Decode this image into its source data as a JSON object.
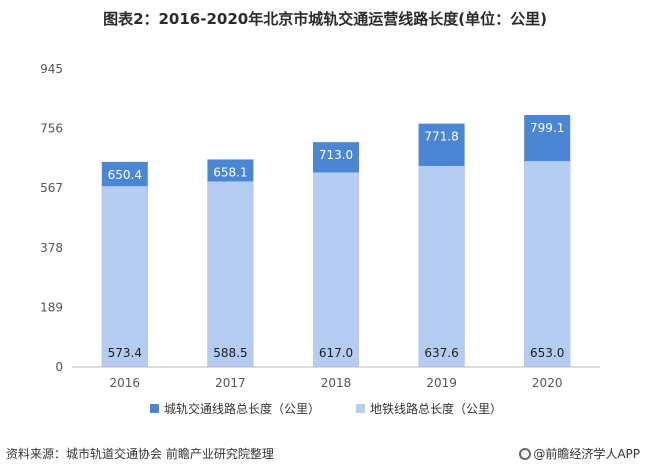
{
  "title": "图表2：2016-2020年北京市城轨交通运营线路长度(单位：公里)",
  "source": "资料来源：城市轨道交通协会 前瞻产业研究院整理",
  "brand": "@前瞻经济学人APP",
  "colors": {
    "total": "#4a86d4",
    "subway": "#b4ccf0",
    "axis": "#b7b7b7",
    "text": "#555555"
  },
  "chart_data": {
    "type": "bar",
    "categories": [
      "2016",
      "2017",
      "2018",
      "2019",
      "2020"
    ],
    "series": [
      {
        "name": "城轨交通线路总长度（公里）",
        "values": [
          650.4,
          658.1,
          713.0,
          771.8,
          799.1
        ]
      },
      {
        "name": "地铁线路总长度（公里）",
        "values": [
          573.4,
          588.5,
          617.0,
          637.6,
          653.0
        ]
      }
    ],
    "data_labels": {
      "total": [
        "650.4",
        "658.1",
        "713.0",
        "771.8",
        "799.1"
      ],
      "subway": [
        "573.4",
        "588.5",
        "617.0",
        "637.6",
        "653.0"
      ]
    },
    "yticks": [
      "0",
      "189",
      "378",
      "567",
      "756",
      "945"
    ],
    "ylim": [
      0,
      945
    ],
    "grid": false,
    "legend_position": "bottom"
  }
}
